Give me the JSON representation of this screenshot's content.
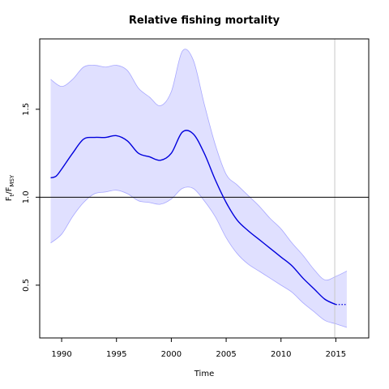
{
  "chart_data": {
    "type": "area",
    "title": "Relative fishing mortality",
    "xlabel": "Time",
    "ylabel": {
      "base": "F",
      "sub1": "t",
      "sep": "/F",
      "sub2": "MSY"
    },
    "xlim": [
      1988,
      2018
    ],
    "ylim": [
      0.2,
      1.9
    ],
    "xticks": [
      1990,
      1995,
      2000,
      2005,
      2010,
      2015
    ],
    "yticks": [
      0.5,
      1.0,
      1.5
    ],
    "xtick_labels": [
      "1990",
      "1995",
      "2000",
      "2005",
      "2010",
      "2015"
    ],
    "ytick_labels": [
      "0.5",
      "1.0",
      "1.5"
    ],
    "grid": false,
    "reference_hline": 1.0,
    "reference_vline": 2014.9,
    "colors": {
      "line": "#0000dd",
      "band": "#e0e0ff",
      "band_edge": "#a8a8ff",
      "ref": "#000000",
      "vline": "#c8c8c8"
    },
    "series": [
      {
        "role": "estimate",
        "x": [
          1989,
          1989.5,
          1990,
          1991,
          1992,
          1993,
          1994,
          1995,
          1996,
          1997,
          1998,
          1999,
          2000,
          2001,
          2002,
          2003,
          2004,
          2005,
          2006,
          2007,
          2008,
          2009,
          2010,
          2011,
          2012,
          2013,
          2014,
          2015
        ],
        "y": [
          1.11,
          1.12,
          1.16,
          1.25,
          1.33,
          1.34,
          1.34,
          1.35,
          1.32,
          1.25,
          1.23,
          1.21,
          1.25,
          1.37,
          1.36,
          1.25,
          1.1,
          0.97,
          0.87,
          0.81,
          0.76,
          0.71,
          0.66,
          0.61,
          0.54,
          0.48,
          0.42,
          0.39
        ]
      },
      {
        "role": "lower",
        "x": [
          1989,
          1990,
          1991,
          1992,
          1993,
          1994,
          1995,
          1996,
          1997,
          1998,
          1999,
          2000,
          2001,
          2002,
          2003,
          2004,
          2005,
          2006,
          2007,
          2008,
          2009,
          2010,
          2011,
          2012,
          2013,
          2014,
          2015,
          2016
        ],
        "y": [
          0.74,
          0.79,
          0.89,
          0.97,
          1.02,
          1.03,
          1.04,
          1.02,
          0.98,
          0.97,
          0.96,
          0.99,
          1.05,
          1.05,
          0.98,
          0.89,
          0.77,
          0.68,
          0.62,
          0.58,
          0.54,
          0.5,
          0.46,
          0.4,
          0.35,
          0.3,
          0.28,
          0.26
        ]
      },
      {
        "role": "upper",
        "x": [
          1989,
          1990,
          1991,
          1992,
          1993,
          1994,
          1995,
          1996,
          1997,
          1998,
          1999,
          2000,
          2001,
          2002,
          2003,
          2004,
          2005,
          2006,
          2007,
          2008,
          2009,
          2010,
          2011,
          2012,
          2013,
          2014,
          2015,
          2016
        ],
        "y": [
          1.67,
          1.63,
          1.67,
          1.74,
          1.75,
          1.74,
          1.75,
          1.72,
          1.62,
          1.57,
          1.52,
          1.6,
          1.83,
          1.78,
          1.53,
          1.3,
          1.13,
          1.07,
          1.01,
          0.95,
          0.88,
          0.82,
          0.74,
          0.67,
          0.59,
          0.53,
          0.55,
          0.58
        ]
      },
      {
        "role": "forecast",
        "x": [
          2015,
          2016
        ],
        "y": [
          0.39,
          0.39
        ]
      }
    ]
  }
}
